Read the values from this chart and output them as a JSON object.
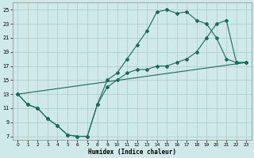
{
  "xlabel": "Humidex (Indice chaleur)",
  "bg_color": "#cfe8e8",
  "line_color": "#1a6b5a",
  "grid_color": "#b0d0d0",
  "xlim": [
    -0.5,
    23.5
  ],
  "ylim": [
    6.5,
    26
  ],
  "xticks": [
    0,
    1,
    2,
    3,
    4,
    5,
    6,
    7,
    8,
    9,
    10,
    11,
    12,
    13,
    14,
    15,
    16,
    17,
    18,
    19,
    20,
    21,
    22,
    23
  ],
  "yticks": [
    7,
    9,
    11,
    13,
    15,
    17,
    19,
    21,
    23,
    25
  ],
  "line1_x": [
    0,
    1,
    2,
    3,
    4,
    5,
    6,
    7,
    8,
    9,
    10,
    11,
    12,
    13,
    14,
    15,
    16,
    17,
    18,
    19,
    20,
    21,
    22,
    23
  ],
  "line1_y": [
    13,
    11.5,
    11,
    9.5,
    8.5,
    7.2,
    7.0,
    7.0,
    11.5,
    15,
    16,
    18,
    20,
    22,
    24.7,
    25,
    24.5,
    24.7,
    23.5,
    23,
    21,
    18,
    17.5,
    17.5
  ],
  "line2_x": [
    0,
    1,
    2,
    3,
    4,
    5,
    6,
    7,
    8,
    9,
    10,
    11,
    12,
    13,
    14,
    15,
    16,
    17,
    18,
    19,
    20,
    21,
    22,
    23
  ],
  "line2_y": [
    13,
    11.5,
    11,
    9.5,
    8.5,
    7.2,
    7.0,
    7.0,
    11.5,
    14,
    15,
    16,
    16.5,
    16.5,
    17,
    17,
    17.5,
    18,
    19,
    21,
    23,
    23.5,
    17.5,
    17.5
  ],
  "line3_x": [
    0,
    23
  ],
  "line3_y": [
    13,
    17.5
  ]
}
